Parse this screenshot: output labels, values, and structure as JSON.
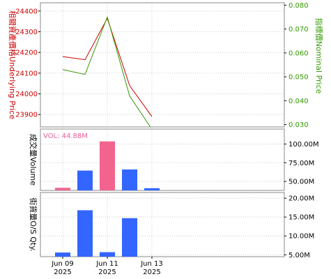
{
  "colors": {
    "underlying": "#cc0000",
    "nominal": "#339900",
    "vol_label": "#e8609a",
    "bar_pink": "#f2648f",
    "bar_blue": "#3366ff",
    "axis_text": "#000000",
    "grid": "#cccccc",
    "frame": "#000000"
  },
  "chart_data": [
    {
      "type": "line",
      "panel": "price",
      "x": [
        "Jun 09 2025",
        "Jun 10 2025",
        "Jun 11 2025",
        "Jun 12 2025",
        "Jun 13 2025"
      ],
      "series": [
        {
          "name": "相關資產價格 Underlying Price",
          "axis": "left",
          "values": [
            24180,
            24165,
            24365,
            24040,
            23890
          ]
        },
        {
          "name": "指標價 Nominal Price",
          "axis": "right",
          "values": [
            0.053,
            0.051,
            0.075,
            0.042,
            0.028
          ]
        }
      ],
      "ylabel_left": "相關資產價格Underlying Price",
      "ylabel_right": "指標價Nominal Price",
      "ylim_left": [
        23840,
        24440
      ],
      "ylim_right": [
        0.029,
        0.081
      ],
      "yticks_left": [
        "23900",
        "24000",
        "24100",
        "24200",
        "24300",
        "24400"
      ],
      "yticks_right": [
        "0.030",
        "0.040",
        "0.050",
        "0.060",
        "0.070",
        "0.080"
      ],
      "grid": true
    },
    {
      "type": "bar",
      "panel": "volume",
      "x": [
        "Jun 09 2025",
        "Jun 10 2025",
        "Jun 11 2025",
        "Jun 12 2025",
        "Jun 13 2025"
      ],
      "values": [
        41.5,
        64.5,
        103.5,
        66.0,
        41.0
      ],
      "highlight": [
        true,
        false,
        true,
        false,
        false
      ],
      "unit": "M",
      "annotation": "VOL: 44.88M",
      "ylabel": "成交量Volume",
      "ylim": [
        38,
        120
      ],
      "yticks": [
        "50.00M",
        "75.00M",
        "100.00M"
      ],
      "grid": true
    },
    {
      "type": "bar",
      "panel": "os_qty",
      "x": [
        "Jun 09 2025",
        "Jun 10 2025",
        "Jun 11 2025",
        "Jun 12 2025",
        "Jun 13 2025"
      ],
      "values": [
        5.6,
        16.8,
        5.7,
        14.7,
        null
      ],
      "unit": "M",
      "ylabel": "街貨量O/S Qty.",
      "ylim": [
        4.5,
        21.5
      ],
      "yticks": [
        "5.00M",
        "10.00M",
        "15.00M",
        "20.00M"
      ],
      "grid": true
    }
  ],
  "xaxis": {
    "ticks": [
      {
        "line1": "Jun 09",
        "line2": "2025"
      },
      {
        "line1": "Jun 11",
        "line2": "2025"
      },
      {
        "line1": "Jun 13",
        "line2": "2025"
      }
    ]
  }
}
